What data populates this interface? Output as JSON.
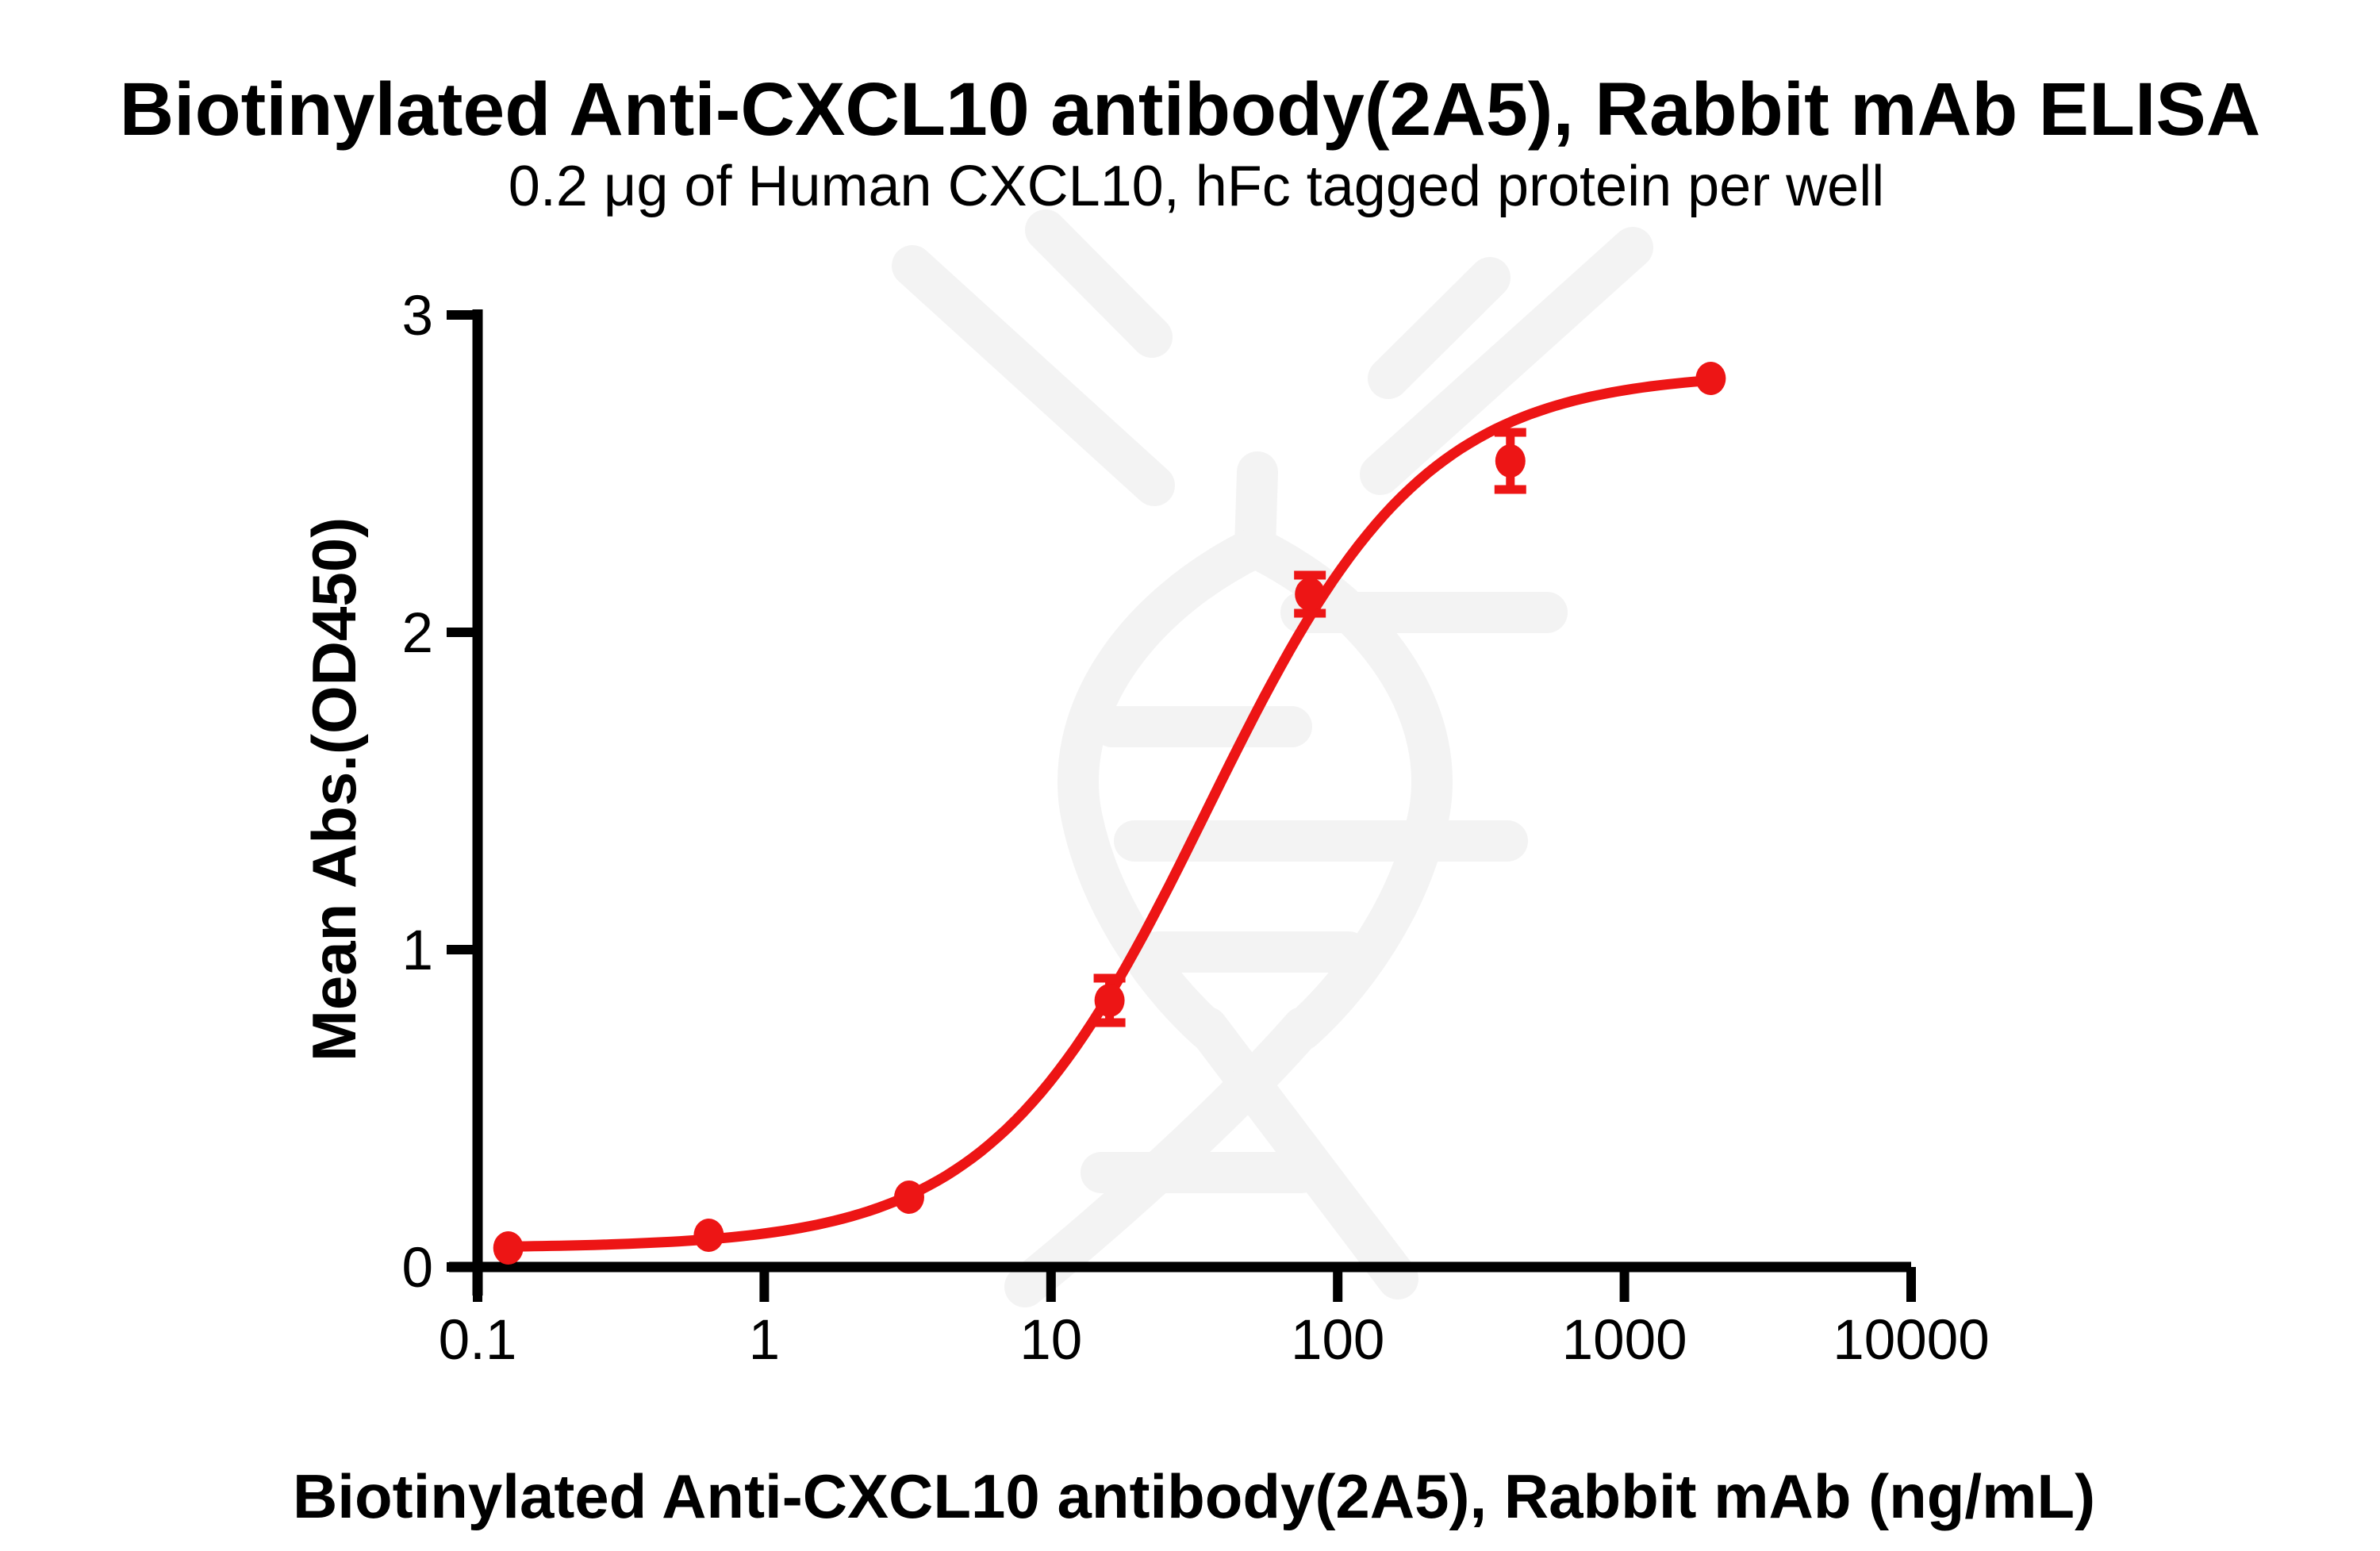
{
  "page": {
    "background": "#ffffff",
    "colors": {
      "accent_red": "#ed1515",
      "axis_black": "#000000",
      "watermark_gray": "#f3f3f3"
    },
    "watermark": "dna-antibody-logo"
  },
  "chart_data": {
    "type": "scatter",
    "title": "Biotinylated Anti-CXCL10 antibody(2A5), Rabbit mAb ELISA",
    "subtitle": "0.2 μg of Human CXCL10, hFc tagged protein per well",
    "xlabel": "Biotinylated Anti-CXCL10 antibody(2A5), Rabbit mAb (ng/mL)",
    "ylabel": "Mean Abs.(OD450)",
    "x_scale": "log10",
    "xlim": [
      0.1,
      10000
    ],
    "ylim": [
      0,
      3
    ],
    "x_ticks": [
      0.1,
      1,
      10,
      100,
      1000,
      10000
    ],
    "x_tick_labels": [
      "0.1",
      "1",
      "10",
      "100",
      "1000",
      "10000"
    ],
    "y_ticks": [
      0,
      1,
      2,
      3
    ],
    "y_tick_labels": [
      "0",
      "1",
      "2",
      "3"
    ],
    "grid": false,
    "legend": "none",
    "series": [
      {
        "name": "Biotinylated Anti-CXCL10 antibody(2A5), Rabbit mAb",
        "color": "#ed1515",
        "marker": "circle",
        "x": [
          0.128,
          0.64,
          3.2,
          16,
          80,
          400,
          2000
        ],
        "y": [
          0.06,
          0.1,
          0.22,
          0.84,
          2.12,
          2.54,
          2.8
        ],
        "y_err": [
          0,
          0,
          0,
          0.07,
          0.06,
          0.09,
          0
        ]
      }
    ],
    "fit_curve": {
      "model": "4PL",
      "bottom": 0.06,
      "top": 2.82,
      "ec50_ng_ml": 35,
      "hill": 1.15,
      "x_start": 0.128,
      "x_end": 2000
    }
  }
}
